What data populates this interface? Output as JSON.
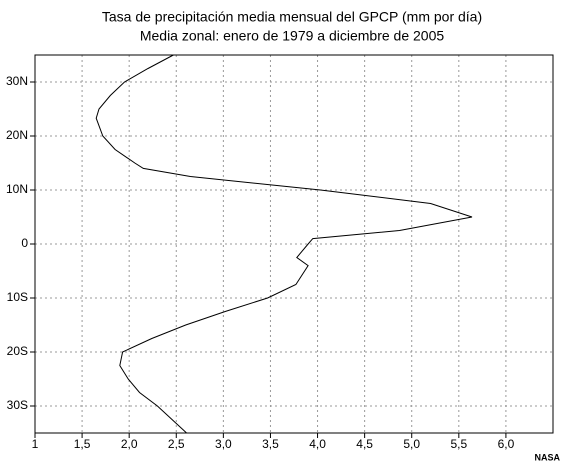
{
  "chart_data": {
    "type": "line",
    "title": "Tasa de precipitación media mensual del GPCP (mm por día)",
    "subtitle": "Media zonal: enero de 1979 a diciembre de 2005",
    "credit": "NASA",
    "x": [
      2.47,
      2.2,
      1.95,
      1.8,
      1.68,
      1.65,
      1.72,
      1.85,
      2.06,
      2.15,
      2.65,
      4.03,
      5.2,
      5.64,
      4.87,
      3.95,
      3.9,
      3.78,
      3.9,
      3.77,
      3.47,
      3.02,
      2.6,
      2.24,
      1.93,
      1.9,
      1.99,
      2.11,
      2.3,
      2.61
    ],
    "y": [
      35,
      32.5,
      30,
      27.5,
      25,
      23.3,
      20,
      17.5,
      15,
      14,
      12.5,
      10,
      7.5,
      5,
      2.5,
      1,
      0,
      -2.5,
      -4,
      -7.5,
      -10,
      -12.5,
      -15,
      -17.5,
      -20,
      -22.5,
      -25,
      -27.5,
      -30,
      -35
    ],
    "color": "#000000",
    "xlim": [
      1,
      6.5
    ],
    "xticks": [
      1,
      {
        "value": 1.5,
        "label": "1,5"
      },
      {
        "value": 2,
        "label": "2,0"
      },
      {
        "value": 2.5,
        "label": "2,5"
      },
      {
        "value": 3,
        "label": "3,0"
      },
      {
        "value": 3.5,
        "label": "3,5"
      },
      {
        "value": 4,
        "label": "4,0"
      },
      {
        "value": 4.5,
        "label": "4,5"
      },
      {
        "value": 5,
        "label": "5,0"
      },
      {
        "value": 5.5,
        "label": "5,5"
      },
      {
        "value": 6,
        "label": "6,0"
      }
    ],
    "ylim": [
      -35,
      35
    ],
    "yticks": [
      {
        "value": 30,
        "label": "30N"
      },
      {
        "value": 20,
        "label": "20N"
      },
      {
        "value": 10,
        "label": "10N"
      },
      0,
      {
        "value": -10,
        "label": "10S"
      },
      {
        "value": -20,
        "label": "20S"
      },
      {
        "value": -30,
        "label": "30S"
      }
    ],
    "grid": true
  }
}
